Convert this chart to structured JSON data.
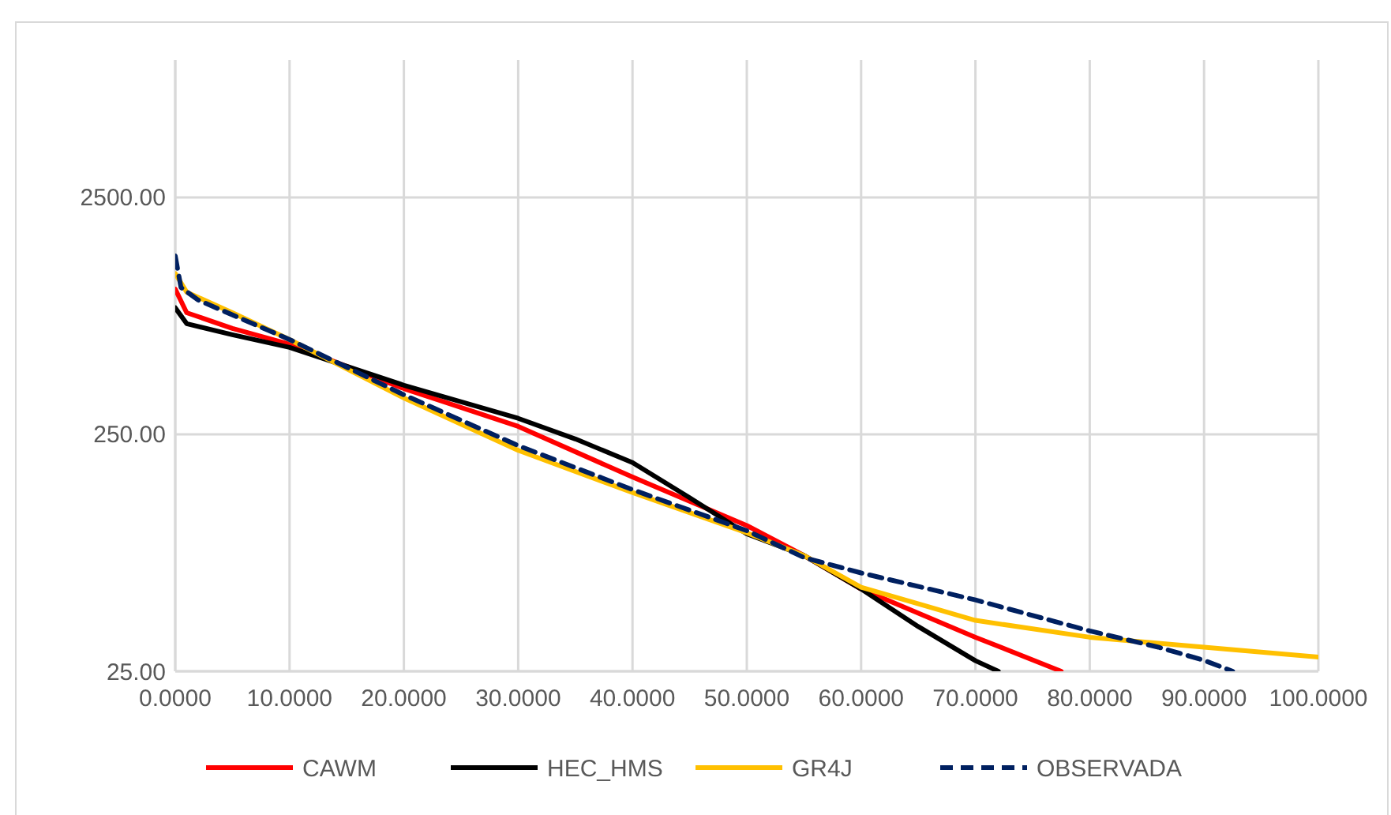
{
  "chart_data": {
    "type": "line",
    "log": "y",
    "grid": true,
    "legend": "bottom",
    "xlim": [
      0,
      100
    ],
    "ylim": [
      25,
      9500
    ],
    "xticks": [
      {
        "value": 0,
        "label": "0.0000"
      },
      {
        "value": 10,
        "label": "10.0000"
      },
      {
        "value": 20,
        "label": "20.0000"
      },
      {
        "value": 30,
        "label": "30.0000"
      },
      {
        "value": 40,
        "label": "40.0000"
      },
      {
        "value": 50,
        "label": "50.0000"
      },
      {
        "value": 60,
        "label": "60.0000"
      },
      {
        "value": 70,
        "label": "70.0000"
      },
      {
        "value": 80,
        "label": "80.0000"
      },
      {
        "value": 90,
        "label": "90.0000"
      },
      {
        "value": 100,
        "label": "100.0000"
      }
    ],
    "yticks": [
      {
        "value": 25,
        "label": "25.00"
      },
      {
        "value": 250,
        "label": "250.00"
      },
      {
        "value": 2500,
        "label": "2500.00"
      }
    ],
    "series": [
      {
        "name": "CAWM",
        "color": "#ff0000",
        "line_style": "solid",
        "x": [
          0,
          1,
          5,
          10,
          20,
          30,
          40,
          50,
          55,
          60,
          70,
          77.5
        ],
        "values": [
          1025,
          815,
          700,
          600,
          390,
          270,
          165,
          103,
          77,
          55.6,
          34.8,
          25
        ]
      },
      {
        "name": "HEC_HMS",
        "color": "#000000",
        "line_style": "solid",
        "x": [
          0,
          1,
          5,
          10,
          20,
          30,
          35,
          40,
          45,
          50,
          55,
          60,
          65,
          70,
          72
        ],
        "values": [
          855,
          733,
          658,
          582,
          403,
          292,
          239,
          190,
          135,
          95,
          77,
          55.6,
          38.6,
          27.7,
          25
        ]
      },
      {
        "name": "GR4J",
        "color": "#ffc000",
        "line_style": "solid",
        "x": [
          0,
          1,
          5,
          10,
          20,
          30,
          40,
          50,
          55,
          60,
          70,
          80,
          90,
          100
        ],
        "values": [
          1193,
          996,
          815,
          628,
          356,
          214,
          142,
          96,
          77,
          56.6,
          41,
          34.8,
          31.6,
          28.7
        ]
      },
      {
        "name": "OBSERVADA",
        "color": "#002060",
        "line_style": "dashed",
        "x": [
          0,
          0.5,
          2,
          10,
          20,
          30,
          40,
          50,
          55,
          60,
          70,
          80,
          86,
          90,
          92.5
        ],
        "values": [
          1416,
          1042,
          922,
          628,
          367,
          224,
          146,
          98,
          75.5,
          65,
          50,
          37,
          31.6,
          27.8,
          25
        ]
      }
    ]
  }
}
